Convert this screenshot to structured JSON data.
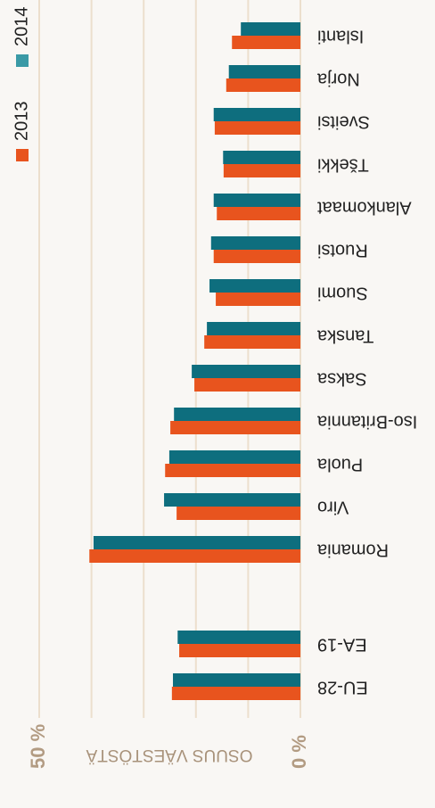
{
  "chart_data": {
    "type": "bar",
    "orientation": "horizontal",
    "categories": [
      "EU-28",
      "EA-19",
      "Romania",
      "Viro",
      "Puola",
      "Iso-Britannia",
      "Saksa",
      "Tanska",
      "Suomi",
      "Ruotsi",
      "Alankomaat",
      "Tšekki",
      "Sveitsi",
      "Norja",
      "Islanti"
    ],
    "series": [
      {
        "name": "2014",
        "color": "#0e6e7e",
        "values": [
          24.4,
          23.5,
          39.6,
          26.1,
          25.1,
          24.2,
          20.8,
          17.9,
          17.4,
          17.1,
          16.6,
          14.8,
          16.6,
          13.7,
          11.4
        ]
      },
      {
        "name": "2013",
        "color": "#e8541e",
        "values": [
          24.6,
          23.2,
          40.4,
          23.7,
          25.9,
          24.9,
          20.3,
          18.4,
          16.2,
          16.6,
          16.0,
          14.7,
          16.4,
          14.2,
          13.1
        ]
      }
    ],
    "xlabel": "OSUUS VÄESTÖSTÄ",
    "xlim": [
      0,
      50
    ],
    "xticks": [
      {
        "value": 0,
        "label": "0 %"
      },
      {
        "value": 50,
        "label": "50 %"
      }
    ],
    "grid_values": [
      10,
      20,
      30,
      40
    ],
    "grid": true
  }
}
